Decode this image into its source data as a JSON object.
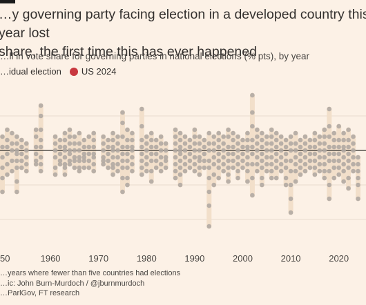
{
  "title": "…y governing party facing election in a developed country this year lost\nshare, the first time this has ever happened",
  "subtitle": "…ll in vote share for governing parties in national elections (% pts), by year",
  "legend": [
    {
      "label": "…idual election",
      "color": "#b1aaa3"
    },
    {
      "label": "US 2024",
      "color": "#c8383f"
    }
  ],
  "notes": [
    "…years where fewer than five countries had elections",
    "…ic: John Burn-Murdoch / @jburnmurdoch",
    "…ParlGov, FT research"
  ],
  "colors": {
    "background": "#fcf1e6",
    "range_band": "#f2dfca",
    "dot": "#b1aaa3",
    "us_2024": "#c8383f",
    "zero_line": "#33302e"
  },
  "chart_data": {
    "type": "scatter",
    "x_label": "",
    "y_label": "",
    "x_ticks": [
      "50",
      "1960",
      "1970",
      "1980",
      "1990",
      "2000",
      "2010",
      "2020"
    ],
    "xlim": [
      1949.5,
      2024.5
    ],
    "ylim": [
      -28,
      20
    ],
    "zero_line": 0,
    "grid": "horizontal every 10 pts",
    "series": [
      {
        "name": "",
        "points_by_year": [
          {
            "x": 1950,
            "y": [
              4,
              1,
              -2,
              -5,
              -8,
              -12
            ]
          },
          {
            "x": 1951,
            "y": [
              6,
              3,
              1,
              -1,
              -4,
              -7
            ]
          },
          {
            "x": 1952,
            "y": [
              5,
              2,
              0,
              -3,
              -6
            ]
          },
          {
            "x": 1953,
            "y": [
              4,
              2,
              0,
              -1,
              -3,
              -5,
              -9,
              -12
            ]
          },
          {
            "x": 1954,
            "y": [
              3,
              1,
              -1,
              -3,
              -5
            ]
          },
          {
            "x": 1955,
            "y": [
              2,
              0,
              -2,
              -4,
              -6
            ]
          },
          {
            "x": 1957,
            "y": [
              6,
              4,
              1,
              -1,
              -3,
              -4
            ]
          },
          {
            "x": 1958,
            "y": [
              13,
              10,
              6,
              3,
              1,
              -2,
              -4,
              -6
            ]
          },
          {
            "x": 1961,
            "y": [
              4,
              2,
              0,
              -2,
              -5,
              -7
            ]
          },
          {
            "x": 1962,
            "y": [
              3,
              1,
              -1,
              -3,
              -4
            ]
          },
          {
            "x": 1963,
            "y": [
              5,
              3,
              1,
              0,
              -2,
              -4,
              -5,
              -7
            ]
          },
          {
            "x": 1964,
            "y": [
              6,
              4,
              2,
              0,
              -1,
              -3,
              -4
            ]
          },
          {
            "x": 1965,
            "y": [
              4,
              2,
              0,
              -2,
              -3,
              -5
            ]
          },
          {
            "x": 1966,
            "y": [
              5,
              2,
              0,
              -2,
              -3,
              -5,
              -6
            ]
          },
          {
            "x": 1967,
            "y": [
              3,
              1,
              -1,
              -2,
              -3,
              -5
            ]
          },
          {
            "x": 1968,
            "y": [
              4,
              1,
              -1,
              -3,
              -5
            ]
          },
          {
            "x": 1969,
            "y": [
              5,
              3,
              1,
              -1,
              -2,
              -4,
              -6
            ]
          },
          {
            "x": 1971,
            "y": [
              4,
              2,
              0,
              -2,
              -3,
              -4
            ]
          },
          {
            "x": 1972,
            "y": [
              3,
              1,
              -1,
              -3,
              -5
            ]
          },
          {
            "x": 1973,
            "y": [
              5,
              3,
              1,
              0,
              -2,
              -4,
              -5,
              -7
            ]
          },
          {
            "x": 1974,
            "y": [
              4,
              2,
              0,
              -2,
              -4,
              -6
            ]
          },
          {
            "x": 1975,
            "y": [
              11,
              8,
              4,
              1,
              -1,
              -3,
              -5,
              -8,
              -12
            ]
          },
          {
            "x": 1976,
            "y": [
              6,
              3,
              1,
              -1,
              -3,
              -5,
              -8,
              -10
            ]
          },
          {
            "x": 1977,
            "y": [
              5,
              3,
              1,
              0,
              -2,
              -4,
              -6
            ]
          },
          {
            "x": 1979,
            "y": [
              12,
              7,
              3,
              1,
              -1,
              -3,
              -5,
              -7
            ]
          },
          {
            "x": 1980,
            "y": [
              4,
              2,
              0,
              -2,
              -4,
              -6
            ]
          },
          {
            "x": 1981,
            "y": [
              5,
              3,
              1,
              -1,
              -3,
              -6,
              -9
            ]
          },
          {
            "x": 1982,
            "y": [
              3,
              1,
              -1,
              -3,
              -5
            ]
          },
          {
            "x": 1983,
            "y": [
              4,
              2,
              0,
              -2,
              -4,
              -6
            ]
          },
          {
            "x": 1984,
            "y": [
              2,
              0,
              -2,
              -3,
              -5
            ]
          },
          {
            "x": 1986,
            "y": [
              6,
              4,
              2,
              0,
              -2,
              -4,
              -6,
              -8
            ]
          },
          {
            "x": 1987,
            "y": [
              5,
              3,
              1,
              0,
              -1,
              -3,
              -5,
              -7,
              -10
            ]
          },
          {
            "x": 1988,
            "y": [
              4,
              2,
              0,
              -2,
              -4,
              -6
            ]
          },
          {
            "x": 1989,
            "y": [
              3,
              1,
              -1,
              -3,
              -5
            ]
          },
          {
            "x": 1990,
            "y": [
              6,
              4,
              2,
              0,
              -2,
              -4,
              -6
            ]
          },
          {
            "x": 1991,
            "y": [
              4,
              2,
              0,
              -2,
              -3,
              -5,
              -7
            ]
          },
          {
            "x": 1992,
            "y": [
              3,
              1,
              -1,
              -3,
              -5
            ]
          },
          {
            "x": 1993,
            "y": [
              5,
              2,
              0,
              -3,
              -5,
              -8,
              -12,
              -16,
              -22
            ]
          },
          {
            "x": 1994,
            "y": [
              4,
              2,
              0,
              -2,
              -4,
              -7,
              -10
            ]
          },
          {
            "x": 1995,
            "y": [
              5,
              3,
              1,
              -1,
              -3,
              -5,
              -8
            ]
          },
          {
            "x": 1996,
            "y": [
              4,
              2,
              0,
              -2,
              -4,
              -6
            ]
          },
          {
            "x": 1997,
            "y": [
              6,
              4,
              1,
              -1,
              -3,
              -5,
              -7,
              -9
            ]
          },
          {
            "x": 1998,
            "y": [
              5,
              3,
              1,
              -1,
              -3,
              -5
            ]
          },
          {
            "x": 1999,
            "y": [
              4,
              2,
              0,
              -2,
              -4,
              -6,
              -8
            ]
          },
          {
            "x": 2000,
            "y": [
              3,
              1,
              -1,
              -3,
              -5
            ]
          },
          {
            "x": 2001,
            "y": [
              5,
              3,
              1,
              0,
              -2,
              -4,
              -6,
              -9
            ]
          },
          {
            "x": 2002,
            "y": [
              16,
              11,
              7,
              3,
              1,
              -1,
              -4,
              -8,
              -13
            ]
          },
          {
            "x": 2003,
            "y": [
              6,
              4,
              2,
              0,
              -2,
              -4,
              -6
            ]
          },
          {
            "x": 2004,
            "y": [
              5,
              3,
              1,
              -1,
              -3,
              -5,
              -8,
              -10
            ]
          },
          {
            "x": 2005,
            "y": [
              4,
              2,
              0,
              -2,
              -4,
              -6
            ]
          },
          {
            "x": 2006,
            "y": [
              6,
              4,
              2,
              0,
              -2,
              -4,
              -6,
              -8
            ]
          },
          {
            "x": 2007,
            "y": [
              5,
              3,
              1,
              -1,
              -3,
              -5,
              -8
            ]
          },
          {
            "x": 2008,
            "y": [
              4,
              2,
              0,
              -2,
              -4,
              -6
            ]
          },
          {
            "x": 2009,
            "y": [
              3,
              1,
              -1,
              -3,
              -5,
              -8,
              -10
            ]
          },
          {
            "x": 2010,
            "y": [
              4,
              2,
              0,
              -3,
              -6,
              -10,
              -14,
              -18
            ]
          },
          {
            "x": 2011,
            "y": [
              5,
              2,
              0,
              -2,
              -4,
              -6,
              -9
            ]
          },
          {
            "x": 2012,
            "y": [
              3,
              1,
              -1,
              -3,
              -5,
              -7
            ]
          },
          {
            "x": 2013,
            "y": [
              4,
              2,
              0,
              -2,
              -4,
              -6
            ]
          },
          {
            "x": 2014,
            "y": [
              3,
              1,
              -1,
              -3,
              -5
            ]
          },
          {
            "x": 2015,
            "y": [
              5,
              3,
              1,
              -1,
              -3,
              -5,
              -7
            ]
          },
          {
            "x": 2016,
            "y": [
              4,
              2,
              0,
              -2,
              -4,
              -6
            ]
          },
          {
            "x": 2017,
            "y": [
              6,
              4,
              2,
              0,
              -2,
              -4,
              -6,
              -8
            ]
          },
          {
            "x": 2018,
            "y": [
              12,
              7,
              4,
              1,
              -1,
              -3,
              -6,
              -10,
              -14
            ]
          },
          {
            "x": 2019,
            "y": [
              5,
              3,
              1,
              -1,
              -3,
              -5,
              -8
            ]
          },
          {
            "x": 2020,
            "y": [
              7,
              3,
              1,
              -1,
              -3,
              -5,
              -7
            ]
          },
          {
            "x": 2021,
            "y": [
              5,
              3,
              1,
              0,
              -2,
              -4,
              -6,
              -9
            ]
          },
          {
            "x": 2022,
            "y": [
              6,
              3,
              1,
              -1,
              -3,
              -5,
              -8,
              -11
            ]
          },
          {
            "x": 2023,
            "y": [
              4,
              2,
              0,
              -2,
              -4,
              -6
            ]
          },
          {
            "x": 2024,
            "y": [
              -2,
              -4,
              -6,
              -8,
              -10,
              -14
            ]
          }
        ]
      }
    ]
  }
}
